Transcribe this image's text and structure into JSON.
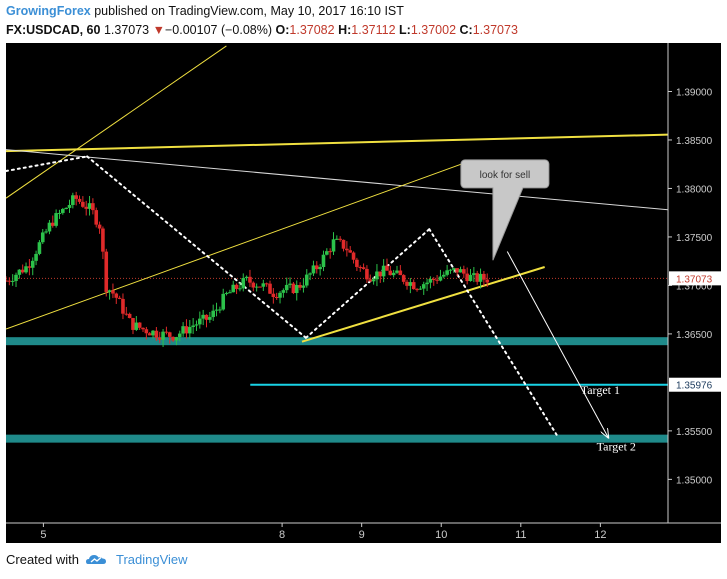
{
  "header": {
    "author": "GrowingForex",
    "published_text": "published on TradingView.com, May 10, 2017 16:10 IST",
    "symbol": "FX:USDCAD, 60",
    "last": "1.37073",
    "change_arrow": "▼",
    "change": "−0.00107 (−0.08%)",
    "o_label": "O:",
    "o_value": "1.37082",
    "h_label": "H:",
    "h_value": "1.37112",
    "l_label": "L:",
    "l_value": "1.37002",
    "c_label": "C:",
    "c_value": "1.37073"
  },
  "footer": {
    "created_with": "Created with",
    "brand": "TradingView",
    "logo_icon": "tradingview-cloud-icon"
  },
  "chart_data": {
    "type": "candlestick",
    "symbol": "FX:USDCAD",
    "interval": "60",
    "y_ticks": [
      "1.39000",
      "1.38500",
      "1.38000",
      "1.37500",
      "1.37000",
      "1.36500",
      "1.35500",
      "1.35000"
    ],
    "ylim": [
      1.3455,
      1.395
    ],
    "x_ticks": [
      {
        "label": "5",
        "t": 5
      },
      {
        "label": "8",
        "t": 8
      },
      {
        "label": "9",
        "t": 9
      },
      {
        "label": "10",
        "t": 10
      },
      {
        "label": "11",
        "t": 11
      },
      {
        "label": "12",
        "t": 12
      }
    ],
    "xlim": [
      4.53,
      12.85
    ],
    "last_price": {
      "label": "1.37073",
      "value": 1.37073,
      "color": "#c0392b"
    },
    "levels": [
      {
        "name": "Target 1",
        "label": "1.35976",
        "value": 1.35976,
        "color": "#19d3e6",
        "from_t": 7.6
      },
      {
        "name": "support-zone-upper",
        "value": 1.36425,
        "color": "#1f8a8a",
        "band": true
      },
      {
        "name": "Target 2",
        "value": 1.3542,
        "color": "#1f8a8a",
        "band": true
      }
    ],
    "annotations": {
      "callout": {
        "text": "look for sell",
        "t": 10.8,
        "y": 1.3815
      },
      "target_labels": [
        {
          "text": "Target 1",
          "t": 12.0,
          "y": 1.35878
        },
        {
          "text": "Target 2",
          "t": 12.2,
          "y": 1.353
        }
      ]
    },
    "trendlines": [
      {
        "name": "outer-channel-top",
        "color": "#f0e040",
        "width": 1,
        "dash": "",
        "from": [
          4.53,
          1.379
        ],
        "to": [
          7.3,
          1.3947
        ]
      },
      {
        "name": "horizontal-resistance",
        "color": "#f0e040",
        "width": 2,
        "dash": "",
        "from": [
          4.53,
          1.38385
        ],
        "to": [
          12.85,
          1.38555
        ]
      },
      {
        "name": "white-trendline",
        "color": "#d8d8d8",
        "width": 1,
        "dash": "",
        "from": [
          4.53,
          1.384
        ],
        "to": [
          12.85,
          1.3778
        ]
      },
      {
        "name": "upper-channel",
        "color": "#f0e040",
        "width": 1,
        "dash": "",
        "from": [
          4.53,
          1.3655
        ],
        "to": [
          10.25,
          1.3825
        ]
      },
      {
        "name": "rising-support",
        "color": "#f0e040",
        "width": 2,
        "dash": "",
        "from": [
          8.25,
          1.3642
        ],
        "to": [
          11.3,
          1.3719
        ]
      },
      {
        "name": "zigzag-1",
        "color": "#ffffff",
        "width": 2,
        "dash": "2 4",
        "from": [
          4.53,
          1.3818
        ],
        "to": [
          5.55,
          1.3833
        ]
      },
      {
        "name": "zigzag-2",
        "color": "#ffffff",
        "width": 2,
        "dash": "2 4",
        "from": [
          5.55,
          1.3833
        ],
        "to": [
          8.3,
          1.3646
        ]
      },
      {
        "name": "zigzag-3",
        "color": "#ffffff",
        "width": 2,
        "dash": "2 4",
        "from": [
          8.3,
          1.3646
        ],
        "to": [
          9.85,
          1.3758
        ]
      },
      {
        "name": "zigzag-4",
        "color": "#ffffff",
        "width": 2,
        "dash": "2 4",
        "from": [
          9.85,
          1.3758
        ],
        "to": [
          11.45,
          1.3546
        ]
      },
      {
        "name": "projection-arrow",
        "color": "#ffffff",
        "width": 1,
        "dash": "",
        "arrow": true,
        "from": [
          10.83,
          1.3735
        ],
        "to": [
          12.1,
          1.3543
        ]
      }
    ],
    "candles_anchor_path": [
      [
        4.53,
        1.3705
      ],
      [
        4.8,
        1.372
      ],
      [
        5.1,
        1.3765
      ],
      [
        5.4,
        1.379
      ],
      [
        5.6,
        1.3778
      ],
      [
        5.72,
        1.376
      ],
      [
        5.78,
        1.37
      ],
      [
        5.9,
        1.369
      ],
      [
        6.0,
        1.3675
      ],
      [
        6.1,
        1.366
      ],
      [
        6.25,
        1.3655
      ],
      [
        6.45,
        1.365
      ],
      [
        6.65,
        1.3648
      ],
      [
        6.9,
        1.366
      ],
      [
        7.1,
        1.3667
      ],
      [
        7.3,
        1.369
      ],
      [
        7.55,
        1.3705
      ],
      [
        7.75,
        1.37
      ],
      [
        7.9,
        1.3692
      ],
      [
        8.0,
        1.3695
      ],
      [
        8.2,
        1.3698
      ],
      [
        8.45,
        1.372
      ],
      [
        8.65,
        1.3745
      ],
      [
        8.8,
        1.374
      ],
      [
        8.95,
        1.372
      ],
      [
        9.1,
        1.371
      ],
      [
        9.3,
        1.3715
      ],
      [
        9.5,
        1.3708
      ],
      [
        9.68,
        1.37
      ],
      [
        9.85,
        1.3704
      ],
      [
        10.0,
        1.371
      ],
      [
        10.2,
        1.3716
      ],
      [
        10.4,
        1.3707
      ],
      [
        10.6,
        1.3707
      ]
    ],
    "grid": false,
    "colors": {
      "background": "#000000",
      "up": "#2cc24a",
      "down": "#e02a2a",
      "axis_text": "#cccccc",
      "price_box": "#ffffff"
    }
  }
}
